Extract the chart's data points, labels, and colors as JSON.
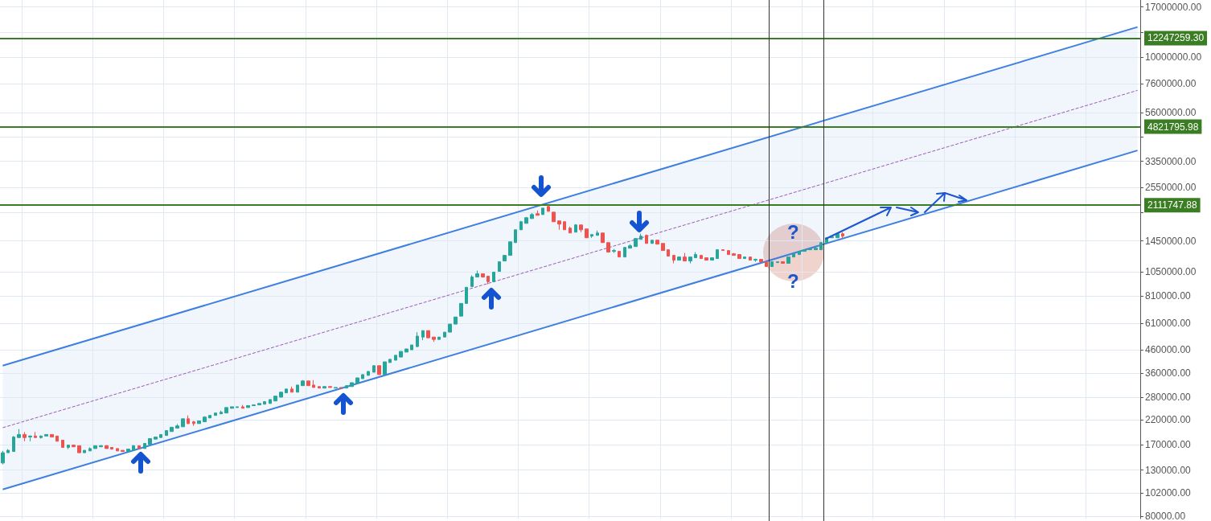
{
  "chart_data": {
    "type": "candlestick",
    "categories": [
      null,
      null,
      null,
      null,
      null,
      null,
      null,
      null,
      null,
      null,
      null,
      null,
      null,
      null,
      null,
      null,
      null,
      null,
      null,
      null,
      null,
      null,
      null,
      null,
      null,
      null,
      null,
      null,
      null,
      null,
      null,
      null,
      null,
      null,
      null,
      null,
      null,
      null,
      null,
      null,
      null,
      null,
      null,
      null,
      null,
      null,
      null,
      null,
      null,
      null,
      null,
      null,
      null,
      null,
      null,
      null,
      null,
      null,
      null,
      null,
      null,
      null,
      null,
      null,
      null,
      null,
      null,
      null,
      null,
      null,
      null,
      null,
      null,
      null,
      null,
      null,
      null,
      null,
      null,
      null,
      null,
      null,
      null,
      null,
      null,
      null,
      null,
      null,
      null,
      null,
      null,
      null,
      null,
      null,
      null,
      null,
      null,
      null,
      null,
      null,
      null,
      null,
      null,
      null,
      null,
      null,
      null,
      null,
      null,
      null,
      null,
      null,
      null,
      null,
      null,
      null,
      null,
      null,
      null,
      null,
      null,
      null,
      null,
      null,
      null,
      null,
      null,
      null,
      null,
      null,
      null,
      null,
      null,
      null,
      null,
      null,
      null,
      null,
      null,
      null,
      null,
      null,
      null,
      null,
      null,
      null,
      null,
      null,
      null,
      null,
      null,
      null,
      null,
      null,
      null,
      null,
      null,
      null,
      null,
      null,
      null,
      null,
      null,
      null,
      null,
      null,
      null,
      null,
      null,
      null,
      null,
      null,
      null,
      null,
      null,
      null,
      null,
      null,
      null,
      null,
      null,
      null,
      null,
      null,
      null,
      null,
      null,
      null,
      null,
      null,
      null,
      null,
      null,
      null,
      null,
      null,
      null,
      null,
      null,
      null,
      null,
      null,
      null,
      null,
      null,
      null,
      null,
      null,
      null
    ],
    "ohlc": [
      [
        140000,
        159000,
        138000,
        156000
      ],
      [
        156000,
        162000,
        156000,
        160000
      ],
      [
        158000,
        186000,
        158000,
        184000
      ],
      [
        183000,
        200000,
        183000,
        189000
      ],
      [
        189000,
        194000,
        176000,
        183000
      ],
      [
        184000,
        187000,
        176000,
        186000
      ],
      [
        186000,
        194000,
        183000,
        183000
      ],
      [
        183000,
        187000,
        181000,
        186000
      ],
      [
        186000,
        189000,
        186000,
        189000
      ],
      [
        189000,
        189000,
        184000,
        184000
      ],
      [
        186000,
        186000,
        176000,
        176000
      ],
      [
        178000,
        178000,
        165000,
        165000
      ],
      [
        165000,
        169000,
        162000,
        169000
      ],
      [
        169000,
        170000,
        166000,
        166000
      ],
      [
        168000,
        168000,
        156000,
        156000
      ],
      [
        156000,
        160000,
        156000,
        160000
      ],
      [
        159000,
        165000,
        159000,
        163000
      ],
      [
        163000,
        168000,
        163000,
        168000
      ],
      [
        166000,
        169000,
        166000,
        168000
      ],
      [
        168000,
        169000,
        163000,
        163000
      ],
      [
        165000,
        165000,
        162000,
        162000
      ],
      [
        163000,
        163000,
        159000,
        159000
      ],
      [
        160000,
        160000,
        158000,
        158000
      ],
      [
        158000,
        162000,
        158000,
        162000
      ],
      [
        160000,
        169000,
        160000,
        168000
      ],
      [
        168000,
        168000,
        163000,
        163000
      ],
      [
        163000,
        172000,
        163000,
        172000
      ],
      [
        170000,
        181000,
        170000,
        181000
      ],
      [
        180000,
        184000,
        180000,
        184000
      ],
      [
        183000,
        189000,
        183000,
        189000
      ],
      [
        187000,
        197000,
        187000,
        197000
      ],
      [
        195000,
        204000,
        195000,
        204000
      ],
      [
        202000,
        211000,
        202000,
        207000
      ],
      [
        205000,
        223000,
        205000,
        223000
      ],
      [
        223000,
        231000,
        211000,
        212000
      ],
      [
        216000,
        218000,
        207000,
        212000
      ],
      [
        212000,
        218000,
        212000,
        218000
      ],
      [
        216000,
        229000,
        216000,
        227000
      ],
      [
        225000,
        231000,
        225000,
        231000
      ],
      [
        231000,
        237000,
        231000,
        237000
      ],
      [
        235000,
        243000,
        235000,
        239000
      ],
      [
        237000,
        251000,
        237000,
        251000
      ],
      [
        249000,
        253000,
        249000,
        253000
      ],
      [
        251000,
        253000,
        251000,
        253000
      ],
      [
        253000,
        258000,
        249000,
        249000
      ],
      [
        251000,
        256000,
        251000,
        256000
      ],
      [
        256000,
        258000,
        256000,
        258000
      ],
      [
        258000,
        262000,
        258000,
        262000
      ],
      [
        260000,
        267000,
        260000,
        267000
      ],
      [
        262000,
        273000,
        262000,
        273000
      ],
      [
        269000,
        283000,
        269000,
        283000
      ],
      [
        280000,
        295000,
        280000,
        295000
      ],
      [
        293000,
        305000,
        293000,
        305000
      ],
      [
        305000,
        313000,
        295000,
        295000
      ],
      [
        295000,
        318000,
        295000,
        318000
      ],
      [
        316000,
        335000,
        316000,
        332000
      ],
      [
        332000,
        332000,
        316000,
        316000
      ],
      [
        318000,
        335000,
        310000,
        310000
      ],
      [
        313000,
        313000,
        308000,
        308000
      ],
      [
        308000,
        313000,
        308000,
        313000
      ],
      [
        313000,
        313000,
        310000,
        310000
      ],
      [
        308000,
        310000,
        308000,
        310000
      ],
      [
        310000,
        310000,
        308000,
        308000
      ],
      [
        308000,
        316000,
        308000,
        316000
      ],
      [
        313000,
        326000,
        313000,
        326000
      ],
      [
        324000,
        343000,
        324000,
        343000
      ],
      [
        340000,
        355000,
        340000,
        355000
      ],
      [
        352000,
        367000,
        352000,
        367000
      ],
      [
        364000,
        390000,
        364000,
        390000
      ],
      [
        390000,
        390000,
        355000,
        355000
      ],
      [
        355000,
        406000,
        355000,
        406000
      ],
      [
        403000,
        417000,
        403000,
        417000
      ],
      [
        413000,
        435000,
        413000,
        435000
      ],
      [
        427000,
        453000,
        427000,
        453000
      ],
      [
        450000,
        465000,
        450000,
        465000
      ],
      [
        461000,
        485000,
        461000,
        485000
      ],
      [
        477000,
        555000,
        473000,
        532000
      ],
      [
        527000,
        564000,
        510000,
        564000
      ],
      [
        564000,
        564000,
        523000,
        523000
      ],
      [
        527000,
        527000,
        501000,
        514000
      ],
      [
        514000,
        527000,
        514000,
        527000
      ],
      [
        527000,
        555000,
        527000,
        555000
      ],
      [
        555000,
        604000,
        555000,
        604000
      ],
      [
        604000,
        651000,
        604000,
        651000
      ],
      [
        657000,
        751000,
        657000,
        751000
      ],
      [
        751000,
        890000,
        751000,
        890000
      ],
      [
        897000,
        1009000,
        897000,
        992000
      ],
      [
        992000,
        1061000,
        992000,
        1026000
      ],
      [
        1026000,
        1026000,
        984000,
        992000
      ],
      [
        1001000,
        1001000,
        920000,
        944000
      ],
      [
        944000,
        1044000,
        944000,
        1044000
      ],
      [
        1052000,
        1164000,
        1052000,
        1164000
      ],
      [
        1174000,
        1245000,
        1174000,
        1245000
      ],
      [
        1245000,
        1436000,
        1245000,
        1436000
      ],
      [
        1424000,
        1630000,
        1424000,
        1630000
      ],
      [
        1630000,
        1789000,
        1630000,
        1774000
      ],
      [
        1744000,
        1866000,
        1744000,
        1850000
      ],
      [
        1834000,
        1946000,
        1834000,
        1913000
      ],
      [
        1930000,
        1996000,
        1897000,
        1897000
      ],
      [
        1913000,
        2047000,
        1913000,
        2047000
      ],
      [
        2082000,
        2117000,
        1979000,
        1979000
      ],
      [
        1962000,
        1962000,
        1774000,
        1774000
      ],
      [
        1789000,
        1789000,
        1630000,
        1730000
      ],
      [
        1774000,
        1774000,
        1630000,
        1630000
      ],
      [
        1658000,
        1686000,
        1576000,
        1576000
      ],
      [
        1590000,
        1730000,
        1590000,
        1715000
      ],
      [
        1715000,
        1715000,
        1590000,
        1630000
      ],
      [
        1644000,
        1644000,
        1498000,
        1498000
      ],
      [
        1524000,
        1550000,
        1498000,
        1550000
      ],
      [
        1537000,
        1617000,
        1537000,
        1576000
      ],
      [
        1576000,
        1576000,
        1424000,
        1424000
      ],
      [
        1424000,
        1424000,
        1288000,
        1288000
      ],
      [
        1299000,
        1332000,
        1277000,
        1310000
      ],
      [
        1299000,
        1299000,
        1224000,
        1224000
      ],
      [
        1224000,
        1354000,
        1224000,
        1354000
      ],
      [
        1343000,
        1401000,
        1343000,
        1377000
      ],
      [
        1366000,
        1486000,
        1366000,
        1486000
      ],
      [
        1473000,
        1563000,
        1473000,
        1524000
      ],
      [
        1537000,
        1550000,
        1412000,
        1412000
      ],
      [
        1412000,
        1461000,
        1412000,
        1461000
      ],
      [
        1461000,
        1461000,
        1401000,
        1401000
      ],
      [
        1412000,
        1412000,
        1310000,
        1310000
      ],
      [
        1321000,
        1321000,
        1235000,
        1235000
      ],
      [
        1245000,
        1245000,
        1145000,
        1184000
      ],
      [
        1184000,
        1224000,
        1184000,
        1224000
      ],
      [
        1224000,
        1277000,
        1174000,
        1174000
      ],
      [
        1174000,
        1224000,
        1145000,
        1224000
      ],
      [
        1214000,
        1288000,
        1214000,
        1256000
      ],
      [
        1245000,
        1245000,
        1204000,
        1204000
      ],
      [
        1214000,
        1214000,
        1184000,
        1184000
      ],
      [
        1184000,
        1214000,
        1184000,
        1214000
      ],
      [
        1204000,
        1321000,
        1204000,
        1321000
      ],
      [
        1321000,
        1321000,
        1310000,
        1310000
      ],
      [
        1310000,
        1310000,
        1256000,
        1256000
      ],
      [
        1266000,
        1277000,
        1245000,
        1245000
      ],
      [
        1256000,
        1256000,
        1204000,
        1204000
      ],
      [
        1204000,
        1224000,
        1204000,
        1224000
      ],
      [
        1224000,
        1224000,
        1184000,
        1184000
      ],
      [
        1184000,
        1204000,
        1164000,
        1194000
      ],
      [
        1194000,
        1194000,
        1164000,
        1164000
      ],
      [
        1164000,
        1164000,
        1107000,
        1107000
      ],
      [
        1107000,
        1164000,
        1107000,
        1164000
      ],
      [
        1154000,
        1164000,
        1154000,
        1164000
      ],
      [
        1164000,
        1164000,
        1145000,
        1145000
      ],
      [
        1145000,
        1224000,
        1145000,
        1224000
      ],
      [
        1224000,
        1266000,
        1224000,
        1266000
      ],
      [
        1256000,
        1299000,
        1256000,
        1299000
      ],
      [
        1299000,
        1321000,
        1299000,
        1321000
      ],
      [
        1321000,
        1332000,
        1321000,
        1332000
      ],
      [
        1321000,
        1343000,
        1321000,
        1343000
      ],
      [
        1321000,
        1424000,
        1321000,
        1424000
      ],
      [
        1424000,
        1498000,
        1424000,
        1498000
      ],
      [
        1498000,
        1511000,
        1498000,
        1511000
      ],
      [
        1498000,
        1563000,
        1498000,
        1563000
      ],
      [
        1563000,
        1590000,
        1486000,
        1524000
      ],
      null,
      null,
      null,
      null,
      null,
      null,
      null,
      null,
      null,
      null,
      null,
      null,
      null,
      null,
      null,
      null,
      null,
      null,
      null,
      null,
      null,
      null,
      null,
      null,
      null,
      null,
      null,
      null,
      null,
      null,
      null,
      null,
      null,
      null,
      null,
      null,
      null,
      null,
      null,
      null,
      null,
      null,
      null,
      null,
      null,
      null,
      null,
      null,
      null,
      null,
      null,
      null,
      null,
      null
    ],
    "colors": [
      "#26a69a",
      "#26a69a",
      "#26a69a",
      "#26a69a",
      "#ef5350",
      "#26a69a",
      "#ef5350",
      "#26a69a",
      "#26a69a",
      "#ef5350",
      "#ef5350",
      "#ef5350",
      "#26a69a",
      "#ef5350",
      "#ef5350",
      "#26a69a",
      "#26a69a",
      "#26a69a",
      "#26a69a",
      "#ef5350",
      "#ef5350",
      "#ef5350",
      "#ef5350",
      "#26a69a",
      "#26a69a",
      "#ef5350",
      "#26a69a",
      "#26a69a",
      "#26a69a",
      "#26a69a",
      "#26a69a",
      "#26a69a",
      "#26a69a",
      "#26a69a",
      "#ef5350",
      "#ef5350",
      "#26a69a",
      "#26a69a",
      "#26a69a",
      "#26a69a",
      "#26a69a",
      "#26a69a",
      "#26a69a",
      "#26a69a",
      "#ef5350",
      "#26a69a",
      "#26a69a",
      "#26a69a",
      "#26a69a",
      "#26a69a",
      "#26a69a",
      "#26a69a",
      "#26a69a",
      "#ef5350",
      "#26a69a",
      "#26a69a",
      "#ef5350",
      "#ef5350",
      "#ef5350",
      "#26a69a",
      "#ef5350",
      "#26a69a",
      "#ef5350",
      "#26a69a",
      "#26a69a",
      "#26a69a",
      "#26a69a",
      "#26a69a",
      "#26a69a",
      "#ef5350",
      "#26a69a",
      "#26a69a",
      "#26a69a",
      "#26a69a",
      "#26a69a",
      "#26a69a",
      "#26a69a",
      "#26a69a",
      "#ef5350",
      "#ef5350",
      "#26a69a",
      "#26a69a",
      "#26a69a",
      "#26a69a",
      "#26a69a",
      "#26a69a",
      "#26a69a",
      "#26a69a",
      "#ef5350",
      "#ef5350",
      "#26a69a",
      "#26a69a",
      "#26a69a",
      "#26a69a",
      "#26a69a",
      "#26a69a",
      "#26a69a",
      "#26a69a",
      "#ef5350",
      "#26a69a",
      "#ef5350",
      "#ef5350",
      "#ef5350",
      "#ef5350",
      "#ef5350",
      "#26a69a",
      "#ef5350",
      "#ef5350",
      "#26a69a",
      "#26a69a",
      "#ef5350",
      "#ef5350",
      "#26a69a",
      "#ef5350",
      "#26a69a",
      "#26a69a",
      "#26a69a",
      "#26a69a",
      "#ef5350",
      "#26a69a",
      "#ef5350",
      "#ef5350",
      "#ef5350",
      "#ef5350",
      "#26a69a",
      "#ef5350",
      "#26a69a",
      "#26a69a",
      "#ef5350",
      "#ef5350",
      "#26a69a",
      "#26a69a",
      "#ef5350",
      "#ef5350",
      "#ef5350",
      "#ef5350",
      "#26a69a",
      "#ef5350",
      "#26a69a",
      "#ef5350",
      "#ef5350",
      "#26a69a",
      "#26a69a",
      "#ef5350",
      "#26a69a",
      "#26a69a",
      "#26a69a",
      "#26a69a",
      "#26a69a",
      "#26a69a",
      "#26a69a",
      "#26a69a",
      "#26a69a",
      "#26a69a",
      "#ef5350",
      null,
      null,
      null,
      null,
      null,
      null,
      null,
      null,
      null,
      null,
      null,
      null,
      null,
      null,
      null,
      null,
      null,
      null,
      null,
      null,
      null,
      null,
      null,
      null,
      null,
      null,
      null,
      null,
      null,
      null,
      null,
      null,
      null,
      null,
      null,
      null,
      null,
      null,
      null,
      null,
      null,
      null,
      null,
      null,
      null,
      null,
      null,
      null,
      null,
      null,
      null,
      null,
      null,
      null
    ],
    "series": [
      {
        "type": "line",
        "color": "#3f7fdf",
        "line_style": "solid",
        "values": [
          390000,
          null,
          null,
          null,
          null,
          null,
          null,
          null,
          null,
          null,
          null,
          null,
          null,
          null,
          null,
          null,
          null,
          null,
          null,
          null,
          null,
          null,
          null,
          null,
          null,
          null,
          null,
          null,
          null,
          null,
          null,
          null,
          null,
          null,
          null,
          null,
          null,
          null,
          null,
          null,
          null,
          null,
          null,
          null,
          null,
          null,
          null,
          null,
          null,
          null,
          null,
          null,
          null,
          null,
          null,
          null,
          null,
          null,
          null,
          null,
          null,
          null,
          null,
          null,
          null,
          null,
          null,
          null,
          null,
          null,
          null,
          null,
          null,
          null,
          null,
          null,
          null,
          null,
          null,
          null,
          null,
          null,
          null,
          null,
          null,
          null,
          null,
          null,
          null,
          null,
          null,
          null,
          null,
          null,
          null,
          null,
          null,
          null,
          null,
          null,
          null,
          null,
          null,
          null,
          null,
          null,
          null,
          null,
          null,
          null,
          null,
          null,
          null,
          null,
          null,
          null,
          null,
          null,
          null,
          null,
          null,
          null,
          null,
          null,
          null,
          null,
          null,
          null,
          null,
          null,
          null,
          null,
          null,
          null,
          null,
          null,
          null,
          null,
          null,
          null,
          null,
          null,
          null,
          null,
          null,
          null,
          null,
          null,
          null,
          null,
          null,
          null,
          null,
          null,
          null,
          null,
          null,
          null,
          null,
          null,
          null,
          null,
          null,
          null,
          null,
          null,
          null,
          null,
          null,
          null,
          null,
          null,
          null,
          null,
          null,
          null,
          null,
          null,
          null,
          null,
          null,
          null,
          null,
          null,
          null,
          null,
          null,
          null,
          null,
          null,
          null,
          null,
          null,
          null,
          null,
          null,
          null,
          null,
          null,
          null,
          null,
          null,
          null,
          null,
          null,
          null,
          null,
          null,
          13770000
        ]
      },
      {
        "type": "line",
        "color": "#3f7fdf",
        "line_style": "solid",
        "values": [
          106000,
          null,
          null,
          null,
          null,
          null,
          null,
          null,
          null,
          null,
          null,
          null,
          null,
          null,
          null,
          null,
          null,
          null,
          null,
          null,
          null,
          null,
          null,
          null,
          null,
          null,
          null,
          null,
          null,
          null,
          null,
          null,
          null,
          null,
          null,
          null,
          null,
          null,
          null,
          null,
          null,
          null,
          null,
          null,
          null,
          null,
          null,
          null,
          null,
          null,
          null,
          null,
          null,
          null,
          null,
          null,
          null,
          null,
          null,
          null,
          null,
          null,
          null,
          null,
          null,
          null,
          null,
          null,
          null,
          null,
          null,
          null,
          null,
          null,
          null,
          null,
          null,
          null,
          null,
          null,
          null,
          null,
          null,
          null,
          null,
          null,
          null,
          null,
          null,
          null,
          null,
          null,
          null,
          null,
          null,
          null,
          null,
          null,
          null,
          null,
          null,
          null,
          null,
          null,
          null,
          null,
          null,
          null,
          null,
          null,
          null,
          null,
          null,
          null,
          null,
          null,
          null,
          null,
          null,
          null,
          null,
          null,
          null,
          null,
          null,
          null,
          null,
          null,
          null,
          null,
          null,
          null,
          null,
          null,
          null,
          null,
          null,
          null,
          null,
          null,
          null,
          null,
          null,
          null,
          null,
          null,
          null,
          null,
          null,
          null,
          null,
          null,
          null,
          null,
          null,
          null,
          null,
          null,
          null,
          null,
          null,
          null,
          null,
          null,
          null,
          null,
          null,
          null,
          null,
          null,
          null,
          null,
          null,
          null,
          null,
          null,
          null,
          null,
          null,
          null,
          null,
          null,
          null,
          null,
          null,
          null,
          null,
          null,
          null,
          null,
          null,
          null,
          null,
          null,
          null,
          null,
          null,
          null,
          null,
          null,
          null,
          null,
          null,
          null,
          null,
          null,
          null,
          null,
          3755000
        ]
      },
      {
        "type": "line",
        "color": "#9b59b6",
        "line_style": "dashed",
        "values": [
          203000,
          null,
          null,
          null,
          null,
          null,
          null,
          null,
          null,
          null,
          null,
          null,
          null,
          null,
          null,
          null,
          null,
          null,
          null,
          null,
          null,
          null,
          null,
          null,
          null,
          null,
          null,
          null,
          null,
          null,
          null,
          null,
          null,
          null,
          null,
          null,
          null,
          null,
          null,
          null,
          null,
          null,
          null,
          null,
          null,
          null,
          null,
          null,
          null,
          null,
          null,
          null,
          null,
          null,
          null,
          null,
          null,
          null,
          null,
          null,
          null,
          null,
          null,
          null,
          null,
          null,
          null,
          null,
          null,
          null,
          null,
          null,
          null,
          null,
          null,
          null,
          null,
          null,
          null,
          null,
          null,
          null,
          null,
          null,
          null,
          null,
          null,
          null,
          null,
          null,
          null,
          null,
          null,
          null,
          null,
          null,
          null,
          null,
          null,
          null,
          null,
          null,
          null,
          null,
          null,
          null,
          null,
          null,
          null,
          null,
          null,
          null,
          null,
          null,
          null,
          null,
          null,
          null,
          null,
          null,
          null,
          null,
          null,
          null,
          null,
          null,
          null,
          null,
          null,
          null,
          null,
          null,
          null,
          null,
          null,
          null,
          null,
          null,
          null,
          null,
          null,
          null,
          null,
          null,
          null,
          null,
          null,
          null,
          null,
          null,
          null,
          null,
          null,
          null,
          null,
          null,
          null,
          null,
          null,
          null,
          null,
          null,
          null,
          null,
          null,
          null,
          null,
          null,
          null,
          null,
          null,
          null,
          null,
          null,
          null,
          null,
          null,
          null,
          null,
          null,
          null,
          null,
          null,
          null,
          null,
          null,
          null,
          null,
          null,
          null,
          null,
          null,
          null,
          null,
          null,
          null,
          null,
          null,
          null,
          null,
          null,
          null,
          null,
          null,
          null,
          null,
          null,
          null,
          7070000
        ],
        "lower": [
          106000,
          null,
          null,
          null,
          null,
          null,
          null,
          null,
          null,
          null,
          null,
          null,
          null,
          null,
          null,
          null,
          null,
          null,
          null,
          null,
          null,
          null,
          null,
          null,
          null,
          null,
          null,
          null,
          null,
          null,
          null,
          null,
          null,
          null,
          null,
          null,
          null,
          null,
          null,
          null,
          null,
          null,
          null,
          null,
          null,
          null,
          null,
          null,
          null,
          null,
          null,
          null,
          null,
          null,
          null,
          null,
          null,
          null,
          null,
          null,
          null,
          null,
          null,
          null,
          null,
          null,
          null,
          null,
          null,
          null,
          null,
          null,
          null,
          null,
          null,
          null,
          null,
          null,
          null,
          null,
          null,
          null,
          null,
          null,
          null,
          null,
          null,
          null,
          null,
          null,
          null,
          null,
          null,
          null,
          null,
          null,
          null,
          null,
          null,
          null,
          null,
          null,
          null,
          null,
          null,
          null,
          null,
          null,
          null,
          null,
          null,
          null,
          null,
          null,
          null,
          null,
          null,
          null,
          null,
          null,
          null,
          null,
          null,
          null,
          null,
          null,
          null,
          null,
          null,
          null,
          null,
          null,
          null,
          null,
          null,
          null,
          null,
          null,
          null,
          null,
          null,
          null,
          null,
          null,
          null,
          null,
          null,
          null,
          null,
          null,
          null,
          null,
          null,
          null,
          null,
          null,
          null,
          null,
          null,
          null,
          null,
          null,
          null,
          null,
          null,
          null,
          null,
          null,
          null,
          null,
          null,
          null,
          null,
          null,
          null,
          null,
          null,
          null,
          null,
          null,
          null,
          null,
          null,
          null,
          null,
          null,
          null,
          null,
          null,
          null,
          null,
          null,
          null,
          null,
          null,
          null,
          null,
          null,
          null,
          null,
          null,
          null,
          null,
          null,
          null,
          null,
          null,
          null,
          3755000
        ],
        "upper": [
          390000,
          null,
          null,
          null,
          null,
          null,
          null,
          null,
          null,
          null,
          null,
          null,
          null,
          null,
          null,
          null,
          null,
          null,
          null,
          null,
          null,
          null,
          null,
          null,
          null,
          null,
          null,
          null,
          null,
          null,
          null,
          null,
          null,
          null,
          null,
          null,
          null,
          null,
          null,
          null,
          null,
          null,
          null,
          null,
          null,
          null,
          null,
          null,
          null,
          null,
          null,
          null,
          null,
          null,
          null,
          null,
          null,
          null,
          null,
          null,
          null,
          null,
          null,
          null,
          null,
          null,
          null,
          null,
          null,
          null,
          null,
          null,
          null,
          null,
          null,
          null,
          null,
          null,
          null,
          null,
          null,
          null,
          null,
          null,
          null,
          null,
          null,
          null,
          null,
          null,
          null,
          null,
          null,
          null,
          null,
          null,
          null,
          null,
          null,
          null,
          null,
          null,
          null,
          null,
          null,
          null,
          null,
          null,
          null,
          null,
          null,
          null,
          null,
          null,
          null,
          null,
          null,
          null,
          null,
          null,
          null,
          null,
          null,
          null,
          null,
          null,
          null,
          null,
          null,
          null,
          null,
          null,
          null,
          null,
          null,
          null,
          null,
          null,
          null,
          null,
          null,
          null,
          null,
          null,
          null,
          null,
          null,
          null,
          null,
          null,
          null,
          null,
          null,
          null,
          null,
          null,
          null,
          null,
          null,
          null,
          null,
          null,
          null,
          null,
          null,
          null,
          null,
          null,
          null,
          null,
          null,
          null,
          null,
          null,
          null,
          null,
          null,
          null,
          null,
          null,
          null,
          null,
          null,
          null,
          null,
          null,
          null,
          null,
          null,
          null,
          null,
          null,
          null,
          null,
          null,
          null,
          null,
          null,
          null,
          null,
          null,
          null,
          null,
          null,
          null,
          null,
          null,
          null,
          13770000
        ]
      }
    ],
    "ref_lines": [
      {
        "axis": "y",
        "value": 12247259.3,
        "label": "12247259.30",
        "color": "#3a7d22"
      },
      {
        "axis": "y",
        "value": 4821795.98,
        "label": "4821795.98",
        "color": "#3a7d22"
      },
      {
        "axis": "y",
        "value": 2111747.88,
        "label": "2111747.88",
        "color": "#3a7d22"
      }
    ],
    "annotations": [
      "?",
      "?"
    ],
    "log": true,
    "ylim": [
      78000,
      18300000
    ],
    "yticks": [
      {
        "value": 17000000,
        "label": "17000000.00"
      },
      {
        "value": 13000000,
        "label": null
      },
      {
        "value": 10000000,
        "label": "10000000.00"
      },
      {
        "value": 7600000,
        "label": "7600000.00"
      },
      {
        "value": 5600000,
        "label": "5600000.00"
      },
      {
        "value": 4350000,
        "label": null
      },
      {
        "value": 3350000,
        "label": "3350000.00"
      },
      {
        "value": 2550000,
        "label": "2550000.00"
      },
      {
        "value": 1950000,
        "label": null
      },
      {
        "value": 1450000,
        "label": "1450000.00"
      },
      {
        "value": 1050000,
        "label": "1050000.00"
      },
      {
        "value": 810000,
        "label": "810000.00"
      },
      {
        "value": 610000,
        "label": "610000.00"
      },
      {
        "value": 460000,
        "label": "460000.00"
      },
      {
        "value": 360000,
        "label": "360000.00"
      },
      {
        "value": 280000,
        "label": "280000.00"
      },
      {
        "value": 220000,
        "label": "220000.00"
      },
      {
        "value": 170000,
        "label": "170000.00"
      },
      {
        "value": 130000,
        "label": "130000.00"
      },
      {
        "value": 102000,
        "label": "102000.00"
      },
      {
        "value": 80000,
        "label": "80000.00"
      }
    ],
    "grid": true,
    "tick_labels": "y"
  }
}
